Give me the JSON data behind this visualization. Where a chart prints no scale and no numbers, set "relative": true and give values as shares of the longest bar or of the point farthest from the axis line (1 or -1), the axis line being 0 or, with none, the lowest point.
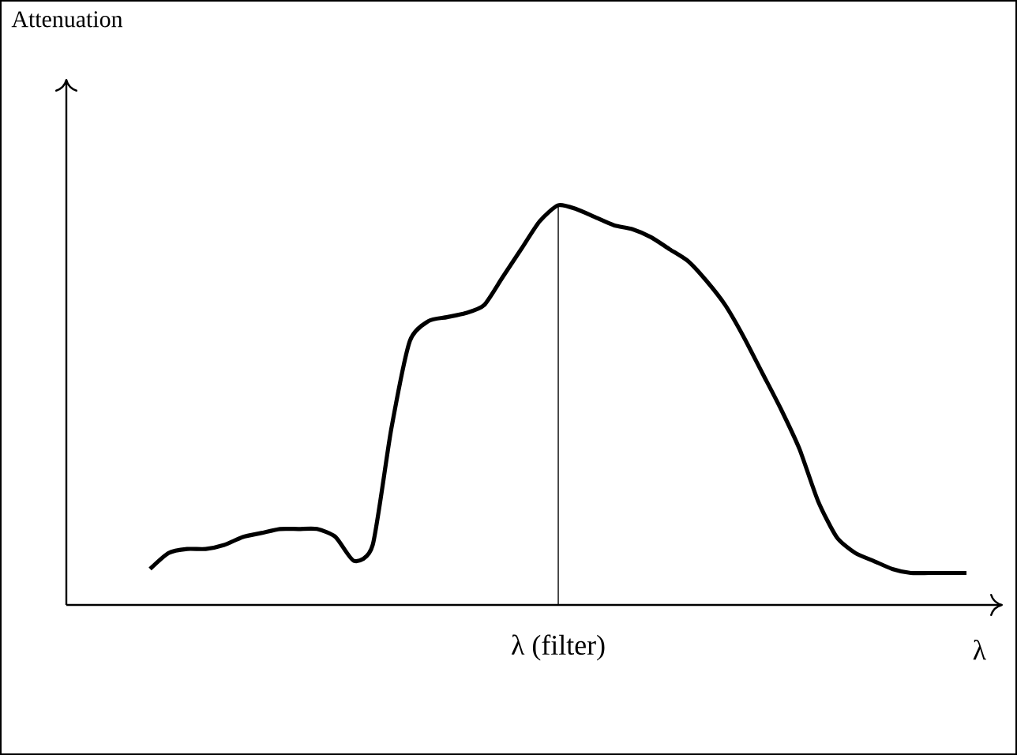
{
  "chart_data": {
    "type": "line",
    "relative": true,
    "xlabel": "λ",
    "annotations": [
      "Attenuation",
      "λ (filter)"
    ],
    "categories": [
      null,
      null,
      null,
      null,
      null,
      null,
      null,
      null,
      null,
      null,
      null,
      null,
      null,
      null,
      null,
      null,
      null,
      null,
      null,
      null,
      null,
      null,
      null,
      null,
      null,
      null,
      null,
      null,
      null,
      null,
      null,
      null,
      null,
      null,
      null,
      null,
      null,
      null,
      null,
      null,
      null,
      null,
      null,
      null,
      null
    ],
    "series": [
      {
        "color": "#000000",
        "values": [
          0.09,
          0.13,
          0.14,
          0.14,
          0.15,
          0.17,
          0.18,
          0.19,
          0.19,
          0.19,
          0.17,
          0.11,
          0.15,
          0.44,
          0.66,
          0.71,
          0.72,
          0.73,
          0.75,
          0.82,
          0.89,
          0.96,
          1,
          0.99,
          0.97,
          0.95,
          0.94,
          0.92,
          0.89,
          0.86,
          0.81,
          0.75,
          0.67,
          0.58,
          0.49,
          0.39,
          0.26,
          0.17,
          0.13,
          0.11,
          0.09,
          0.08,
          0.08,
          0.08,
          0.08
        ]
      }
    ],
    "marker": "none",
    "line_style": "solid"
  }
}
